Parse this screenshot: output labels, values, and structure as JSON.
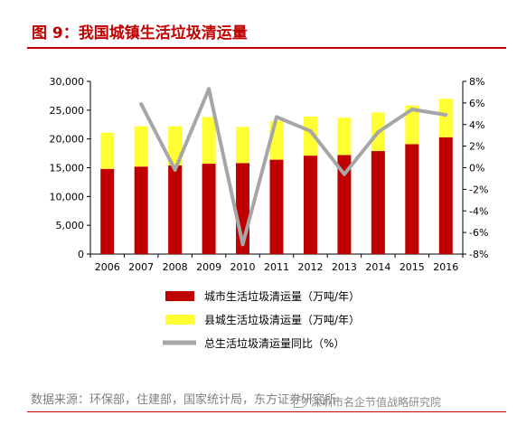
{
  "header": {
    "title": "图 9：我国城镇生活垃圾清运量"
  },
  "source_text": "数据来源：环保部，住建部，国家统计局，东方证券研究所",
  "watermark_text": "深圳市名企节值战略研究院",
  "colors": {
    "title_red": "#c00000",
    "county": "#ffff33",
    "city": "#c00000",
    "growth": "#a6a6a6"
  },
  "chart_data": {
    "type": "bar",
    "stacked": true,
    "categories": [
      "2006",
      "2007",
      "2008",
      "2009",
      "2010",
      "2011",
      "2012",
      "2013",
      "2014",
      "2015",
      "2016"
    ],
    "series": [
      {
        "name": "城市生活垃圾清运量（万吨/年）",
        "type": "bar",
        "axis": "left",
        "values": [
          14800,
          15200,
          15400,
          15700,
          15800,
          16400,
          17100,
          17200,
          17900,
          19100,
          20300
        ]
      },
      {
        "name": "县城生活垃圾清运量（万吨/年）",
        "type": "bar",
        "axis": "left",
        "values": [
          6300,
          7000,
          6800,
          8100,
          6300,
          6700,
          6800,
          6500,
          6700,
          6700,
          6700
        ]
      },
      {
        "name": "总生活垃圾清运量同比（%）",
        "type": "line",
        "axis": "right",
        "values": [
          null,
          5.9,
          -0.2,
          7.3,
          -7.1,
          4.7,
          3.4,
          -0.6,
          3.3,
          5.4,
          4.9
        ]
      }
    ],
    "y_left": {
      "min": 0,
      "max": 30000,
      "ticks": [
        0,
        5000,
        10000,
        15000,
        20000,
        25000,
        30000
      ],
      "tick_labels": [
        "0",
        "5,000",
        "10,000",
        "15,000",
        "20,000",
        "25,000",
        "30,000"
      ]
    },
    "y_right": {
      "min": -8,
      "max": 8,
      "ticks": [
        -8,
        -6,
        -4,
        -2,
        0,
        2,
        4,
        6,
        8
      ],
      "tick_labels": [
        "-8%",
        "-6%",
        "-4%",
        "-2%",
        "0%",
        "2%",
        "4%",
        "6%",
        "8%"
      ]
    },
    "legend_order": [
      0,
      1,
      2
    ],
    "legend_placement": "bottom",
    "grid": false
  }
}
